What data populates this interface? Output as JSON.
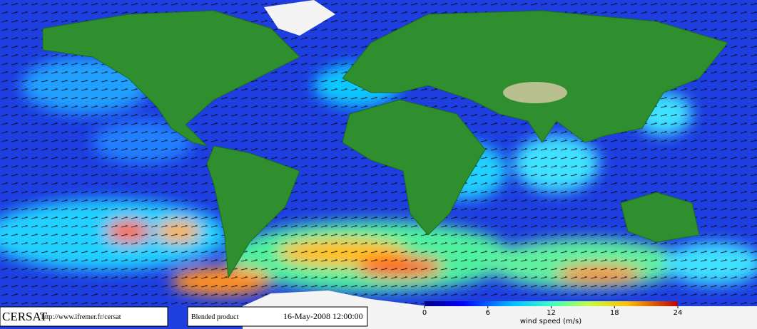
{
  "logo": "CERSAT",
  "url": "http://www.ifremer.fr/cersat",
  "product": "Blended product",
  "date": "16-May-2008 12:00:00",
  "colorbar": {
    "label": "wind speed (m/s)",
    "lim": [
      0,
      24
    ],
    "ticks": [
      0,
      6,
      12,
      18,
      24
    ]
  }
}
